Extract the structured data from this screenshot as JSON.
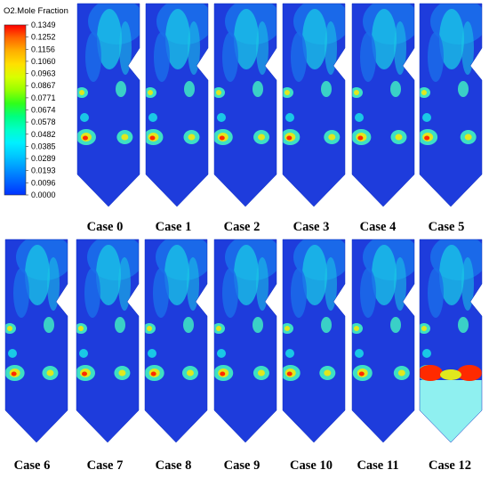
{
  "colorbar": {
    "title": "O2.Mole Fraction",
    "ticks": [
      "0.1349",
      "0.1252",
      "0.1156",
      "0.1060",
      "0.0963",
      "0.0867",
      "0.0771",
      "0.0674",
      "0.0578",
      "0.0482",
      "0.0385",
      "0.0289",
      "0.0193",
      "0.0096",
      "0.0000"
    ],
    "colors": [
      "#ff0000",
      "#ff6600",
      "#ffb000",
      "#ffe000",
      "#d8ff00",
      "#96ff00",
      "#30ff1a",
      "#00ff80",
      "#00ffc8",
      "#00f0ff",
      "#00c8ff",
      "#0096ff",
      "#0064ff",
      "#0032ff"
    ]
  },
  "panels": [
    {
      "label": "Case 0"
    },
    {
      "label": "Case 1"
    },
    {
      "label": "Case 2"
    },
    {
      "label": "Case 3"
    },
    {
      "label": "Case 4"
    },
    {
      "label": "Case 5"
    },
    {
      "label": "Case 6"
    },
    {
      "label": "Case 7"
    },
    {
      "label": "Case 8"
    },
    {
      "label": "Case 9"
    },
    {
      "label": "Case 10"
    },
    {
      "label": "Case 11"
    },
    {
      "label": "Case 12"
    }
  ],
  "palette": {
    "background_low": "#1e3cdc",
    "low": "#1a6eea",
    "mid": "#19c8e6",
    "jet": "#3de0c4",
    "high": "#e0e81e",
    "peak": "#ff2a00"
  }
}
